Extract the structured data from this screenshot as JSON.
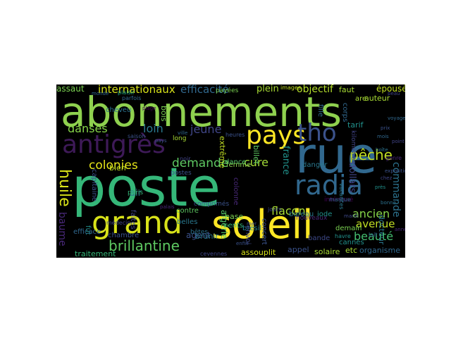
{
  "cloud": {
    "words": [
      {
        "t": "abonnements",
        "c": "#8fd14f"
      },
      {
        "t": "poste",
        "c": "#35b779"
      },
      {
        "t": "rue",
        "c": "#31688e"
      },
      {
        "t": "soleil",
        "c": "#fde725"
      },
      {
        "t": "grand",
        "c": "#d8e219"
      },
      {
        "t": "antigrès",
        "c": "#3e1a58"
      },
      {
        "t": "pays",
        "c": "#fde725"
      },
      {
        "t": "tho",
        "c": "#3b528b"
      },
      {
        "t": "radia",
        "c": "#31688e"
      },
      {
        "t": "brillantine",
        "c": "#5ec962"
      },
      {
        "t": "huile",
        "c": "#d8e219"
      },
      {
        "t": "pêche",
        "c": "#c2df23"
      },
      {
        "t": "colonies",
        "c": "#e5e419"
      },
      {
        "t": "danses",
        "c": "#86d549"
      },
      {
        "t": "demande",
        "c": "#5ec962"
      },
      {
        "t": "cure",
        "c": "#a2da37"
      },
      {
        "t": "loin",
        "c": "#2a788e"
      },
      {
        "t": "jeune",
        "c": "#404688"
      },
      {
        "t": "internationaux",
        "c": "#d8e219"
      },
      {
        "t": "efficacité",
        "c": "#31688e"
      },
      {
        "t": "plein",
        "c": "#a8db34"
      },
      {
        "t": "objectif",
        "c": "#b5de2b"
      },
      {
        "t": "épousé",
        "c": "#c2df23"
      },
      {
        "t": "ancien",
        "c": "#86d549"
      },
      {
        "t": "avenue",
        "c": "#c2df23"
      },
      {
        "t": "beauté",
        "c": "#44bf70"
      },
      {
        "t": "commande",
        "c": "#2c728e"
      },
      {
        "t": "flacon",
        "c": "#a8db34"
      },
      {
        "t": "france",
        "c": "#21918c"
      },
      {
        "t": "baume",
        "c": "#482878"
      },
      {
        "t": "traitement",
        "c": "#35b779"
      },
      {
        "t": "assaut",
        "c": "#7ad151"
      },
      {
        "t": "organisme",
        "c": "#31688e"
      },
      {
        "t": "solaire",
        "c": "#a8db34"
      },
      {
        "t": "appel",
        "c": "#3b528b"
      },
      {
        "t": "assouplit",
        "c": "#d8e219"
      },
      {
        "t": "cevennes",
        "c": "#404688"
      },
      {
        "t": "air",
        "c": "#2c728e"
      },
      {
        "t": "cents",
        "c": "#35b779"
      },
      {
        "t": "bureau",
        "c": "#2a788e"
      },
      {
        "t": "base",
        "c": "#7ad151"
      },
      {
        "t": "algérie",
        "c": "#54c568"
      },
      {
        "t": "brésil",
        "c": "#26828e"
      },
      {
        "t": "chambre",
        "c": "#3b528b"
      },
      {
        "t": "contre",
        "c": "#5ec962"
      },
      {
        "t": "belles",
        "c": "#2a788e"
      },
      {
        "t": "agent",
        "c": "#3b528b"
      },
      {
        "t": "dollars",
        "c": "#404688"
      },
      {
        "t": "danger",
        "c": "#2a788e"
      },
      {
        "t": "docteur",
        "c": "#2a788e"
      },
      {
        "t": "cheveu",
        "c": "#2c728e"
      },
      {
        "t": "bien",
        "c": "#c2df23"
      },
      {
        "t": "faites",
        "c": "#414487"
      },
      {
        "t": "bois",
        "c": "#7ad151"
      },
      {
        "t": "fille",
        "c": "#31688e"
      },
      {
        "t": "auteur",
        "c": "#a8db34"
      },
      {
        "t": "tarif",
        "c": "#21918c"
      },
      {
        "t": "corps",
        "c": "#31688e"
      },
      {
        "t": "faut",
        "c": "#a8db34"
      },
      {
        "t": "are",
        "c": "#a8db34"
      },
      {
        "t": "etc",
        "c": "#a8db34"
      },
      {
        "t": "demain",
        "c": "#7ad151"
      },
      {
        "t": "envoi",
        "c": "#3e4989"
      },
      {
        "t": "concert",
        "c": "#3b528b"
      },
      {
        "t": "colonne",
        "c": "#482878"
      },
      {
        "t": "femme",
        "c": "#8fd14f"
      },
      {
        "t": "extrême",
        "c": "#c2df23"
      },
      {
        "t": "billet",
        "c": "#5ec962"
      },
      {
        "t": "brunir",
        "c": "#2a788e"
      },
      {
        "t": "dance",
        "c": "#54c568"
      },
      {
        "t": "capitaine",
        "c": "#3b528b"
      },
      {
        "t": "postes",
        "c": "#3b528b"
      },
      {
        "t": "fut",
        "c": "#21918c"
      },
      {
        "t": "efficace",
        "c": "#31688e"
      },
      {
        "t": "bande",
        "c": "#3e4989"
      },
      {
        "t": "cannes",
        "c": "#21918c"
      },
      {
        "t": "iode",
        "c": "#21918c"
      },
      {
        "t": "nouveaux",
        "c": "#482878"
      },
      {
        "t": "paris",
        "c": "#35b779"
      },
      {
        "t": "bêtes",
        "c": "#2c728e"
      },
      {
        "t": "long",
        "c": "#a8db34"
      },
      {
        "t": "comprimés",
        "c": "#3b528b"
      },
      {
        "t": "intéressé",
        "c": "#440154"
      },
      {
        "t": "payées",
        "c": "#7ad151"
      },
      {
        "t": "kilomètres",
        "c": "#414487"
      },
      {
        "t": "havre",
        "c": "#21918c"
      },
      {
        "t": "médecin",
        "c": "#414487"
      },
      {
        "t": "images",
        "c": "#c2df23"
      },
      {
        "t": "plaisir",
        "c": "#22a884"
      },
      {
        "t": "parfois",
        "c": "#31688e"
      },
      {
        "t": "heures",
        "c": "#3b528b"
      },
      {
        "t": "ville",
        "c": "#31688e"
      },
      {
        "t": "jours",
        "c": "#3e4989"
      },
      {
        "t": "prix",
        "c": "#3b528b"
      },
      {
        "t": "genre",
        "c": "#482878"
      },
      {
        "t": "noir",
        "c": "#414487"
      },
      {
        "t": "mois",
        "c": "#31688e"
      },
      {
        "t": "saison",
        "c": "#3b528b"
      },
      {
        "t": "peau",
        "c": "#414487"
      },
      {
        "t": "exposition",
        "c": "#3b528b"
      },
      {
        "t": "marque",
        "c": "#31688e"
      },
      {
        "t": "boîte",
        "c": "#2c728e"
      },
      {
        "t": "lait",
        "c": "#31688e"
      },
      {
        "t": "palais",
        "c": "#482878"
      },
      {
        "t": "mer",
        "c": "#3b528b"
      },
      {
        "t": "près",
        "c": "#21918c"
      },
      {
        "t": "chez",
        "c": "#404688"
      },
      {
        "t": "bonne",
        "c": "#2c728e"
      },
      {
        "t": "monde",
        "c": "#31688e"
      },
      {
        "t": "enfin",
        "c": "#3b528b"
      },
      {
        "t": "point",
        "c": "#414487"
      },
      {
        "t": "année",
        "c": "#482878"
      },
      {
        "t": "vacances",
        "c": "#2a788e"
      },
      {
        "t": "mardi",
        "c": "#3e4989"
      },
      {
        "t": "voyage",
        "c": "#31688e"
      },
      {
        "t": "pays",
        "c": "#3b528b"
      },
      {
        "t": "plage",
        "c": "#440154"
      }
    ]
  }
}
